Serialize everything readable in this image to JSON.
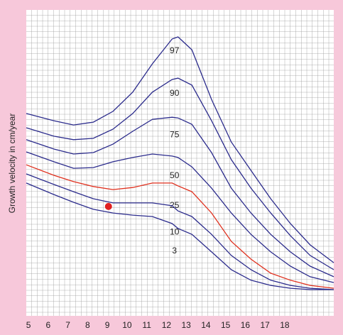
{
  "chart_data": {
    "type": "line",
    "y_label": "Growth velocity in cm/year",
    "x": [
      4.6,
      6,
      7,
      8,
      9,
      10,
      11,
      12,
      12.3,
      13,
      14,
      15,
      16,
      17,
      18,
      19,
      20.2
    ],
    "xlim": [
      4.6,
      20.2
    ],
    "xticks": [
      5,
      6,
      7,
      8,
      9,
      10,
      11,
      12,
      13,
      14,
      15,
      16,
      17,
      18
    ],
    "ylim": [
      0,
      13
    ],
    "grid": true,
    "series": [
      {
        "name": "97",
        "color": "#2b2b8c",
        "values": [
          8.64,
          8.33,
          8.15,
          8.27,
          8.73,
          9.55,
          10.76,
          11.82,
          11.91,
          11.36,
          9.24,
          7.42,
          6.21,
          5.0,
          3.94,
          3.03,
          2.27
        ]
      },
      {
        "name": "90",
        "color": "#2b2b8c",
        "values": [
          8.03,
          7.67,
          7.52,
          7.58,
          7.97,
          8.64,
          9.55,
          10.09,
          10.15,
          9.85,
          8.33,
          6.67,
          5.45,
          4.39,
          3.42,
          2.58,
          1.97
        ]
      },
      {
        "name": "75",
        "color": "#2b2b8c",
        "values": [
          7.52,
          7.12,
          6.91,
          6.97,
          7.33,
          7.88,
          8.39,
          8.48,
          8.45,
          8.18,
          6.97,
          5.45,
          4.39,
          3.48,
          2.73,
          2.12,
          1.67
        ]
      },
      {
        "name": "50",
        "color": "#2b2b8c",
        "values": [
          7.0,
          6.58,
          6.3,
          6.33,
          6.58,
          6.76,
          6.91,
          6.82,
          6.76,
          6.36,
          5.45,
          4.39,
          3.48,
          2.73,
          2.12,
          1.67,
          1.42
        ]
      },
      {
        "name": "25",
        "color": "#e0301e",
        "values": [
          6.45,
          6.0,
          5.73,
          5.52,
          5.39,
          5.48,
          5.67,
          5.67,
          5.55,
          5.3,
          4.39,
          3.18,
          2.42,
          1.82,
          1.52,
          1.3,
          1.18
        ]
      },
      {
        "name": "10",
        "color": "#2b2b8c",
        "values": [
          6.06,
          5.61,
          5.3,
          5.0,
          4.82,
          4.82,
          4.82,
          4.7,
          4.48,
          4.24,
          3.48,
          2.58,
          1.97,
          1.52,
          1.3,
          1.18,
          1.12
        ]
      },
      {
        "name": "3",
        "color": "#2b2b8c",
        "values": [
          5.67,
          5.18,
          4.85,
          4.55,
          4.39,
          4.3,
          4.24,
          3.94,
          3.73,
          3.48,
          2.73,
          1.97,
          1.52,
          1.3,
          1.18,
          1.12,
          1.12
        ]
      }
    ],
    "point": {
      "x": 8.77,
      "y": 4.67,
      "color": "#e02020"
    }
  }
}
